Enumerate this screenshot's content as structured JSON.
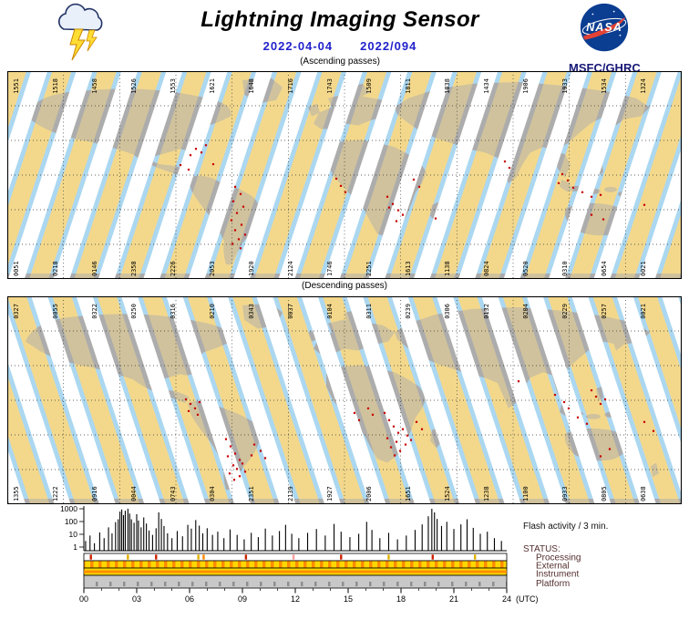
{
  "header": {
    "title": "Lightning Imaging Sensor",
    "date_iso": "2022-04-04",
    "date_doy": "2022/094",
    "nasa_label": "NASA",
    "agency": "MSFC/GHRC"
  },
  "maps": {
    "colors": {
      "ocean": "#ABD7F0",
      "land": "#ACACAC",
      "swath": "#F3D88C",
      "gap": "#FFFFFF",
      "flash": "#C80000"
    },
    "ascending": {
      "caption": "(Ascending passes)",
      "top_labels": [
        "1551",
        "1518",
        "1458",
        "1526",
        "1553",
        "1621",
        "1648",
        "1716",
        "1743",
        "1509",
        "1811",
        "1838",
        "1434",
        "1906",
        "1933",
        "1534",
        "1324"
      ],
      "bottom_labels": [
        "0051",
        "0218",
        "0146",
        "2358",
        "2226",
        "2053",
        "1920",
        "2124",
        "1746",
        "2251",
        "1613",
        "1138",
        "0824",
        "0520",
        "0310",
        "0654",
        "0021"
      ],
      "flash_dots": [
        [
          207,
          86
        ],
        [
          213,
          90
        ],
        [
          201,
          93
        ],
        [
          218,
          82
        ],
        [
          190,
          104
        ],
        [
          199,
          109
        ],
        [
          226,
          103
        ],
        [
          250,
          128
        ],
        [
          256,
          136
        ],
        [
          248,
          144
        ],
        [
          259,
          150
        ],
        [
          252,
          157
        ],
        [
          246,
          165
        ],
        [
          257,
          170
        ],
        [
          250,
          176
        ],
        [
          261,
          181
        ],
        [
          254,
          186
        ],
        [
          247,
          191
        ],
        [
          256,
          196
        ],
        [
          361,
          119
        ],
        [
          366,
          127
        ],
        [
          371,
          134
        ],
        [
          417,
          139
        ],
        [
          423,
          147
        ],
        [
          429,
          154
        ],
        [
          419,
          151
        ],
        [
          434,
          159
        ],
        [
          427,
          166
        ],
        [
          446,
          120
        ],
        [
          452,
          128
        ],
        [
          470,
          163
        ],
        [
          546,
          100
        ],
        [
          551,
          107
        ],
        [
          609,
          114
        ],
        [
          615,
          121
        ],
        [
          621,
          129
        ],
        [
          605,
          124
        ],
        [
          631,
          134
        ],
        [
          641,
          139
        ],
        [
          651,
          137
        ],
        [
          641,
          159
        ],
        [
          654,
          164
        ],
        [
          699,
          148
        ]
      ]
    },
    "descending": {
      "caption": "(Descending passes)",
      "top_labels": [
        "0327",
        "0055",
        "0322",
        "0250",
        "0316",
        "0210",
        "0343",
        "0037",
        "0104",
        "0311",
        "0239",
        "0306",
        "0132",
        "0204",
        "0229",
        "0257",
        "0021"
      ],
      "bottom_labels": [
        "1355",
        "1222",
        "0916",
        "0044",
        "0743",
        "0304",
        "2351",
        "2139",
        "1927",
        "2006",
        "1651",
        "1524",
        "1238",
        "1100",
        "0933",
        "0805",
        "0638"
      ],
      "flash_dots": [
        [
          196,
          114
        ],
        [
          201,
          119
        ],
        [
          206,
          124
        ],
        [
          211,
          117
        ],
        [
          199,
          127
        ],
        [
          209,
          131
        ],
        [
          240,
          158
        ],
        [
          245,
          166
        ],
        [
          250,
          174
        ],
        [
          255,
          181
        ],
        [
          248,
          187
        ],
        [
          242,
          177
        ],
        [
          252,
          191
        ],
        [
          258,
          185
        ],
        [
          261,
          194
        ],
        [
          255,
          199
        ],
        [
          244,
          196
        ],
        [
          249,
          203
        ],
        [
          271,
          164
        ],
        [
          278,
          171
        ],
        [
          283,
          179
        ],
        [
          268,
          176
        ],
        [
          381,
          129
        ],
        [
          386,
          137
        ],
        [
          396,
          124
        ],
        [
          401,
          131
        ],
        [
          414,
          129
        ],
        [
          419,
          137
        ],
        [
          424,
          144
        ],
        [
          429,
          151
        ],
        [
          417,
          157
        ],
        [
          427,
          161
        ],
        [
          434,
          147
        ],
        [
          439,
          154
        ],
        [
          421,
          167
        ],
        [
          431,
          171
        ],
        [
          437,
          164
        ],
        [
          443,
          159
        ],
        [
          425,
          176
        ],
        [
          449,
          139
        ],
        [
          455,
          147
        ],
        [
          561,
          94
        ],
        [
          601,
          109
        ],
        [
          611,
          117
        ],
        [
          616,
          124
        ],
        [
          641,
          104
        ],
        [
          646,
          111
        ],
        [
          651,
          119
        ],
        [
          656,
          114
        ],
        [
          626,
          134
        ],
        [
          636,
          141
        ],
        [
          661,
          169
        ],
        [
          651,
          177
        ],
        [
          699,
          139
        ],
        [
          709,
          149
        ]
      ]
    }
  },
  "chart_data": {
    "type": "bar",
    "title": "Flash activity / 3 min.",
    "y_scale": "log",
    "xlim": [
      0,
      24
    ],
    "ylim": [
      1,
      1000
    ],
    "x_unit": "(UTC)",
    "x_ticks": [
      "00",
      "03",
      "06",
      "09",
      "12",
      "15",
      "18",
      "21",
      "24"
    ],
    "y_ticks": [
      "1000",
      "100",
      "10",
      "1"
    ],
    "bars": [
      [
        0.1,
        3
      ],
      [
        0.35,
        8
      ],
      [
        0.6,
        2
      ],
      [
        0.9,
        14
      ],
      [
        1.15,
        5
      ],
      [
        1.4,
        35
      ],
      [
        1.6,
        12
      ],
      [
        1.8,
        90
      ],
      [
        1.95,
        150
      ],
      [
        2.05,
        600
      ],
      [
        2.15,
        880
      ],
      [
        2.25,
        320
      ],
      [
        2.35,
        700
      ],
      [
        2.5,
        1000
      ],
      [
        2.6,
        420
      ],
      [
        2.7,
        150
      ],
      [
        2.85,
        80
      ],
      [
        3.0,
        380
      ],
      [
        3.1,
        120
      ],
      [
        3.25,
        35
      ],
      [
        3.4,
        210
      ],
      [
        3.55,
        70
      ],
      [
        3.7,
        20
      ],
      [
        3.9,
        9
      ],
      [
        4.1,
        30
      ],
      [
        4.25,
        520
      ],
      [
        4.4,
        160
      ],
      [
        4.55,
        45
      ],
      [
        4.75,
        12
      ],
      [
        5.0,
        5
      ],
      [
        5.3,
        18
      ],
      [
        5.6,
        7
      ],
      [
        5.9,
        55
      ],
      [
        6.1,
        28
      ],
      [
        6.35,
        130
      ],
      [
        6.55,
        48
      ],
      [
        6.75,
        12
      ],
      [
        7.0,
        30
      ],
      [
        7.3,
        9
      ],
      [
        7.6,
        16
      ],
      [
        7.95,
        5
      ],
      [
        8.3,
        24
      ],
      [
        8.7,
        9
      ],
      [
        9.1,
        4
      ],
      [
        9.5,
        13
      ],
      [
        9.9,
        6
      ],
      [
        10.3,
        28
      ],
      [
        10.7,
        8
      ],
      [
        11.1,
        18
      ],
      [
        11.45,
        55
      ],
      [
        11.8,
        11
      ],
      [
        12.2,
        5
      ],
      [
        12.7,
        13
      ],
      [
        13.2,
        26
      ],
      [
        13.7,
        8
      ],
      [
        14.2,
        65
      ],
      [
        14.6,
        16
      ],
      [
        15.1,
        6
      ],
      [
        15.6,
        11
      ],
      [
        16.05,
        95
      ],
      [
        16.35,
        22
      ],
      [
        16.8,
        5
      ],
      [
        17.3,
        13
      ],
      [
        17.8,
        4
      ],
      [
        18.3,
        8
      ],
      [
        18.8,
        22
      ],
      [
        19.2,
        60
      ],
      [
        19.55,
        260
      ],
      [
        19.75,
        1000
      ],
      [
        19.9,
        520
      ],
      [
        20.05,
        160
      ],
      [
        20.3,
        45
      ],
      [
        20.6,
        95
      ],
      [
        21.0,
        26
      ],
      [
        21.4,
        60
      ],
      [
        21.75,
        150
      ],
      [
        22.1,
        32
      ],
      [
        22.5,
        11
      ],
      [
        22.9,
        16
      ],
      [
        23.3,
        5
      ],
      [
        23.7,
        3
      ]
    ],
    "status": {
      "label": "STATUS:",
      "rows": [
        {
          "label": "Processing"
        },
        {
          "label": "External"
        },
        {
          "label": "Instrument"
        },
        {
          "label": "Platform"
        }
      ],
      "processing_marks": [
        [
          0.4,
          "#cc2200"
        ],
        [
          2.5,
          "#e0b000"
        ],
        [
          4.1,
          "#cc2200"
        ],
        [
          6.5,
          "#e0b000"
        ],
        [
          6.8,
          "#ff8800"
        ],
        [
          9.2,
          "#cc2200"
        ],
        [
          11.9,
          "#ff9b9b"
        ],
        [
          14.6,
          "#cc2200"
        ],
        [
          17.3,
          "#e0b000"
        ],
        [
          19.8,
          "#cc2200"
        ],
        [
          22.2,
          "#e0b000"
        ]
      ]
    }
  }
}
